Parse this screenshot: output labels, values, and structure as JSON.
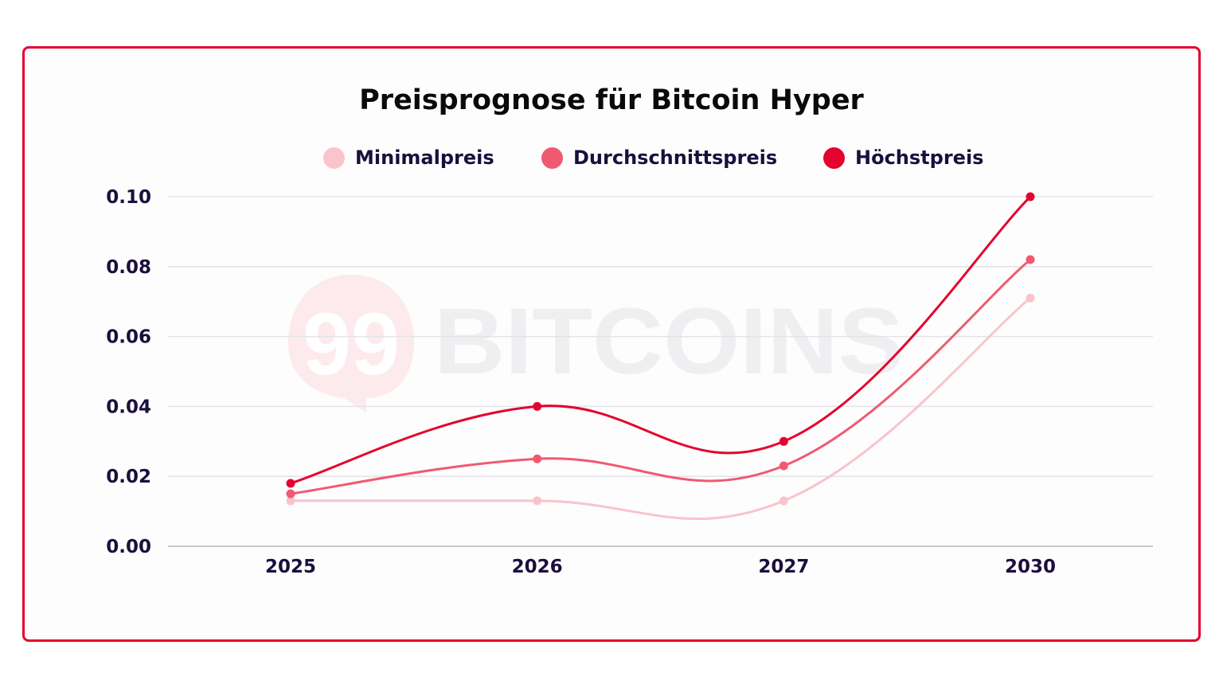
{
  "chart_data": {
    "type": "line",
    "title": "Preisprognose für Bitcoin Hyper",
    "xlabel": "",
    "ylabel": "",
    "categories": [
      "2025",
      "2026",
      "2027",
      "2030"
    ],
    "series": [
      {
        "name": "Minimalpreis",
        "color": "#f9c4cc",
        "values": [
          0.013,
          0.013,
          0.013,
          0.071
        ]
      },
      {
        "name": "Durchschnittspreis",
        "color": "#ef5a71",
        "values": [
          0.015,
          0.025,
          0.023,
          0.082
        ]
      },
      {
        "name": "Höchstpreis",
        "color": "#e4032e",
        "values": [
          0.018,
          0.04,
          0.03,
          0.1
        ]
      }
    ],
    "ylim": [
      0,
      0.1
    ],
    "yticks": [
      "0.00",
      "0.02",
      "0.04",
      "0.06",
      "0.08",
      "0.10"
    ],
    "grid": true,
    "legend_position": "top",
    "line_style": "smooth"
  },
  "watermark": {
    "logo_text": "99",
    "brand_text": "BITCOINS"
  },
  "colors": {
    "frame_border": "#e4032e",
    "text_dark": "#1a0f3c",
    "grid": "#e3e3e8",
    "axis": "#c9c9d2"
  }
}
